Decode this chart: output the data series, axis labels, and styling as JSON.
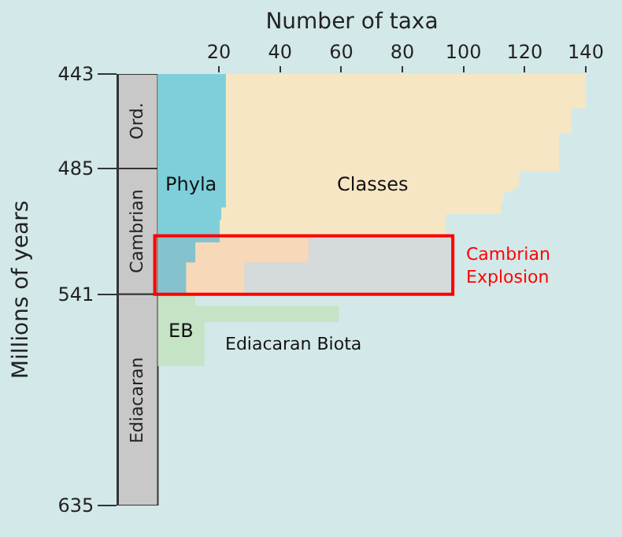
{
  "chart_data": {
    "type": "area",
    "orientation": "horizontal",
    "xlabel": "Number of taxa",
    "ylabel": "Millions of years",
    "xlim": [
      -13,
      140
    ],
    "xticks": [
      20,
      40,
      60,
      80,
      100,
      120,
      140
    ],
    "ylim": [
      635,
      443
    ],
    "yticks": [
      443,
      485,
      541,
      635
    ],
    "grid": false,
    "legend": false,
    "series": [
      {
        "name": "Classes",
        "color": "#f7e6c4",
        "x": [
          443,
          458,
          458,
          469,
          469,
          486,
          486,
          493,
          493,
          495,
          495,
          499.5,
          499.5,
          505,
          505,
          515.5,
          515.5,
          526.5,
          526.5,
          541
        ],
        "values": [
          140,
          140,
          135,
          135,
          131,
          131,
          118,
          118,
          116,
          116,
          113,
          113,
          112,
          112,
          94,
          94,
          49,
          49,
          28,
          28
        ]
      },
      {
        "name": "Phyla",
        "color": "#7ecfda",
        "x": [
          443,
          502,
          502,
          507.5,
          507.5,
          517.5,
          517.5,
          526.5,
          526.5,
          541
        ],
        "values": [
          22,
          22,
          20.5,
          20.5,
          20,
          20,
          12,
          12,
          9,
          9
        ]
      },
      {
        "name": "EB",
        "color": "#c5e3c5",
        "x": [
          541,
          546.5,
          546.5,
          553,
          553,
          573
        ],
        "values": [
          12,
          12,
          59,
          59,
          15,
          15
        ]
      }
    ],
    "bands": [
      {
        "axis": "y",
        "from": 443,
        "to": 485,
        "label": "Ord.",
        "color": "#c8c8c8"
      },
      {
        "axis": "y",
        "from": 485,
        "to": 541,
        "label": "Cambrian",
        "color": "#c8c8c8"
      },
      {
        "axis": "y",
        "from": 541,
        "to": 635,
        "label": "Ediacaran",
        "color": "#c8c8c8"
      },
      {
        "axis": "y",
        "from": 515,
        "to": 541,
        "label": "Cambrian Explosion",
        "color": "#ff0000"
      }
    ],
    "annotations": [
      {
        "text": "Ediacaran Biota",
        "x": 15,
        "y": 563
      }
    ]
  }
}
